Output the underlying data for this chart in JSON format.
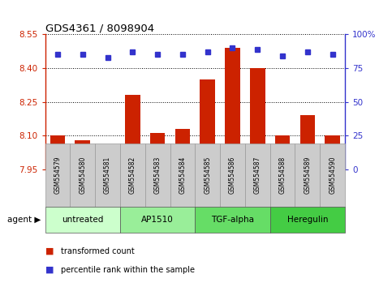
{
  "title": "GDS4361 / 8098904",
  "samples": [
    "GSM554579",
    "GSM554580",
    "GSM554581",
    "GSM554582",
    "GSM554583",
    "GSM554584",
    "GSM554585",
    "GSM554586",
    "GSM554587",
    "GSM554588",
    "GSM554589",
    "GSM554590"
  ],
  "bar_values": [
    8.1,
    8.08,
    7.97,
    8.28,
    8.11,
    8.13,
    8.35,
    8.49,
    8.4,
    8.1,
    8.19,
    8.1
  ],
  "percentile_values": [
    85,
    85,
    83,
    87,
    85,
    85,
    87,
    90,
    89,
    84,
    87,
    85
  ],
  "bar_color": "#cc2200",
  "percentile_color": "#3333cc",
  "y_min": 7.95,
  "y_max": 8.55,
  "y_ticks": [
    7.95,
    8.1,
    8.25,
    8.4,
    8.55
  ],
  "y2_ticks": [
    0,
    25,
    50,
    75,
    100
  ],
  "y2_labels": [
    "0",
    "25",
    "50",
    "75",
    "100%"
  ],
  "groups": [
    {
      "label": "untreated",
      "start": 0,
      "end": 3,
      "color": "#ccffcc"
    },
    {
      "label": "AP1510",
      "start": 3,
      "end": 6,
      "color": "#99ee99"
    },
    {
      "label": "TGF-alpha",
      "start": 6,
      "end": 9,
      "color": "#66dd66"
    },
    {
      "label": "Heregulin",
      "start": 9,
      "end": 12,
      "color": "#44cc44"
    }
  ],
  "legend_bar_label": "transformed count",
  "legend_pct_label": "percentile rank within the sample",
  "agent_label": "agent"
}
